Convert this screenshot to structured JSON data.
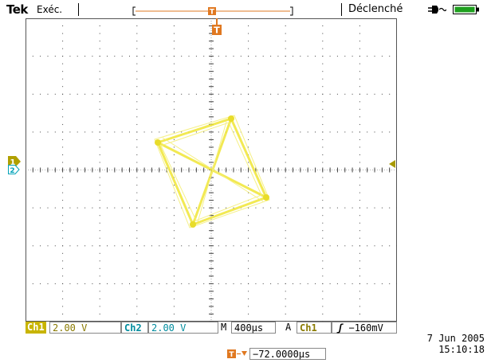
{
  "header": {
    "brand": "Tek",
    "mode": "Exéc.",
    "trigger_status": "Déclenché"
  },
  "icons": {
    "power": "plug-icon",
    "battery": "battery-icon",
    "trigger_marker": "trigger-t-marker-icon",
    "channel1_marker": "ch1-ground-marker-icon",
    "channel2_marker": "ch2-ground-marker-icon",
    "trigger_level_marker": "trigger-level-arrow-icon"
  },
  "colors": {
    "trace": "#f0e636",
    "ch1": "#c8b400",
    "ch2": "#00a2b8",
    "trigger": "#e07820",
    "grid": "#555555"
  },
  "screen_markers": {
    "trigger_label": "T",
    "ch1_label": "1",
    "ch2_label": "2"
  },
  "readouts": {
    "ch1_label": "Ch1",
    "ch1_scale": "2.00 V",
    "ch2_label": "Ch2",
    "ch2_scale": "2.00 V",
    "timebase_label": "M",
    "timebase_value": "400µs",
    "trigger_mode": "A",
    "trigger_source": "Ch1",
    "trigger_slope": "ʃ",
    "trigger_level": "−160mV",
    "trigger_position": "−72.0000µs"
  },
  "timestamp": {
    "date": "7 Jun  2005",
    "time": "15:10:18"
  }
}
